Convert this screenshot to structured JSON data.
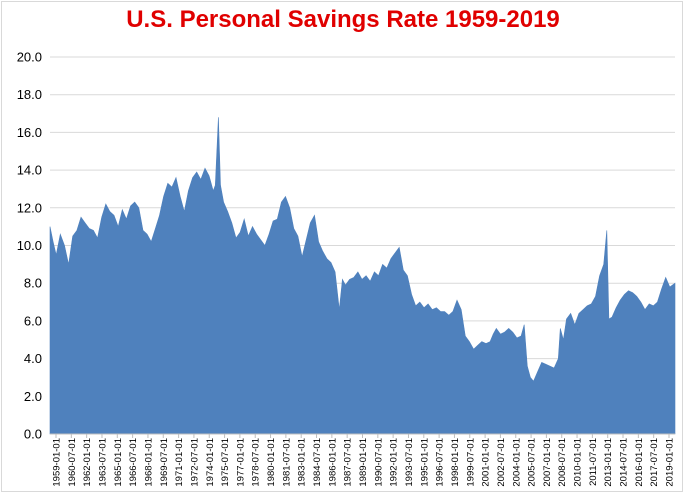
{
  "chart_data": {
    "type": "area",
    "title": "U.S. Personal Savings Rate 1959-2019",
    "xlabel": "",
    "ylabel": "",
    "ylim": [
      0,
      20
    ],
    "yticks": [
      "0.0",
      "2.0",
      "4.0",
      "6.0",
      "8.0",
      "10.0",
      "12.0",
      "14.0",
      "16.0",
      "18.0",
      "20.0"
    ],
    "xtick_labels": [
      "1959-01-01",
      "1960-07-01",
      "1962-01-01",
      "1963-07-01",
      "1965-01-01",
      "1966-07-01",
      "1968-01-01",
      "1969-07-01",
      "1971-01-01",
      "1972-07-01",
      "1974-01-01",
      "1975-07-01",
      "1977-01-01",
      "1978-07-01",
      "1980-01-01",
      "1981-07-01",
      "1983-01-01",
      "1984-07-01",
      "1986-01-01",
      "1987-07-01",
      "1989-01-01",
      "1990-07-01",
      "1992-01-01",
      "1993-07-01",
      "1995-01-01",
      "1996-07-01",
      "1998-01-01",
      "1999-07-01",
      "2001-01-01",
      "2002-07-01",
      "2004-01-01",
      "2005-07-01",
      "2007-01-01",
      "2008-07-01",
      "2010-01-01",
      "2011-07-01",
      "2013-01-01",
      "2014-07-01",
      "2016-01-01",
      "2017-07-01",
      "2019-01-01"
    ],
    "x": [
      1959.0,
      1959.3,
      1959.6,
      1960.0,
      1960.4,
      1960.8,
      1961.2,
      1961.6,
      1962.0,
      1962.4,
      1962.8,
      1963.2,
      1963.6,
      1964.0,
      1964.4,
      1964.8,
      1965.2,
      1965.6,
      1966.0,
      1966.4,
      1966.8,
      1967.2,
      1967.6,
      1968.0,
      1968.4,
      1968.8,
      1969.2,
      1969.6,
      1970.0,
      1970.4,
      1970.8,
      1971.2,
      1971.6,
      1972.0,
      1972.4,
      1972.8,
      1973.2,
      1973.6,
      1974.0,
      1974.4,
      1974.8,
      1975.0,
      1975.3,
      1975.5,
      1975.8,
      1976.2,
      1976.6,
      1977.0,
      1977.4,
      1977.8,
      1978.2,
      1978.6,
      1979.0,
      1979.4,
      1979.8,
      1980.2,
      1980.6,
      1981.0,
      1981.4,
      1981.8,
      1982.2,
      1982.6,
      1983.0,
      1983.4,
      1983.8,
      1984.2,
      1984.6,
      1985.0,
      1985.4,
      1985.8,
      1986.2,
      1986.6,
      1987.0,
      1987.3,
      1987.6,
      1988.0,
      1988.4,
      1988.8,
      1989.2,
      1989.6,
      1990.0,
      1990.4,
      1990.8,
      1991.2,
      1991.6,
      1992.0,
      1992.4,
      1992.8,
      1993.2,
      1993.6,
      1994.0,
      1994.4,
      1994.8,
      1995.2,
      1995.6,
      1996.0,
      1996.4,
      1996.8,
      1997.2,
      1997.6,
      1998.0,
      1998.4,
      1998.8,
      1999.2,
      1999.6,
      2000.0,
      2000.4,
      2000.8,
      2001.2,
      2001.6,
      2001.9,
      2002.2,
      2002.6,
      2003.0,
      2003.4,
      2003.8,
      2004.2,
      2004.6,
      2004.9,
      2005.2,
      2005.5,
      2005.8,
      2006.2,
      2006.6,
      2007.0,
      2007.4,
      2007.8,
      2008.2,
      2008.4,
      2008.7,
      2009.0,
      2009.4,
      2009.8,
      2010.2,
      2010.6,
      2011.0,
      2011.4,
      2011.8,
      2012.2,
      2012.6,
      2012.9,
      2013.1,
      2013.4,
      2013.8,
      2014.2,
      2014.6,
      2015.0,
      2015.4,
      2015.8,
      2016.2,
      2016.6,
      2017.0,
      2017.4,
      2017.8,
      2018.2,
      2018.6,
      2019.0,
      2019.5
    ],
    "series": [
      {
        "name": "",
        "color": "#4f81bd",
        "values": [
          11.0,
          10.2,
          9.5,
          10.6,
          10.0,
          9.0,
          10.5,
          10.8,
          11.5,
          11.2,
          10.9,
          10.8,
          10.4,
          11.5,
          12.2,
          11.8,
          11.6,
          11.0,
          11.9,
          11.4,
          12.1,
          12.3,
          12.0,
          10.8,
          10.6,
          10.2,
          10.9,
          11.6,
          12.6,
          13.3,
          13.1,
          13.6,
          12.6,
          11.8,
          12.9,
          13.6,
          13.9,
          13.5,
          14.1,
          13.7,
          12.9,
          13.2,
          16.8,
          13.2,
          12.3,
          11.8,
          11.2,
          10.4,
          10.7,
          11.4,
          10.5,
          11.0,
          10.6,
          10.3,
          10.0,
          10.6,
          11.3,
          11.4,
          12.3,
          12.6,
          12.0,
          10.9,
          10.5,
          9.4,
          10.3,
          11.2,
          11.6,
          10.2,
          9.7,
          9.3,
          9.1,
          8.6,
          6.6,
          8.2,
          7.9,
          8.2,
          8.3,
          8.6,
          8.2,
          8.4,
          8.1,
          8.6,
          8.4,
          9.0,
          8.8,
          9.3,
          9.6,
          9.9,
          8.7,
          8.4,
          7.4,
          6.8,
          7.0,
          6.7,
          6.9,
          6.6,
          6.7,
          6.5,
          6.5,
          6.3,
          6.5,
          7.1,
          6.6,
          5.2,
          4.9,
          4.5,
          4.7,
          4.9,
          4.8,
          4.9,
          5.3,
          5.6,
          5.3,
          5.4,
          5.6,
          5.4,
          5.1,
          5.2,
          5.8,
          3.6,
          3.0,
          2.8,
          3.3,
          3.8,
          3.7,
          3.6,
          3.5,
          4.0,
          5.6,
          5.0,
          6.1,
          6.4,
          5.8,
          6.4,
          6.6,
          6.8,
          6.9,
          7.3,
          8.4,
          9.0,
          10.8,
          6.1,
          6.2,
          6.7,
          7.1,
          7.4,
          7.6,
          7.5,
          7.3,
          7.0,
          6.6,
          6.9,
          6.8,
          7.0,
          7.7,
          8.3,
          7.8,
          8.0
        ]
      }
    ]
  }
}
